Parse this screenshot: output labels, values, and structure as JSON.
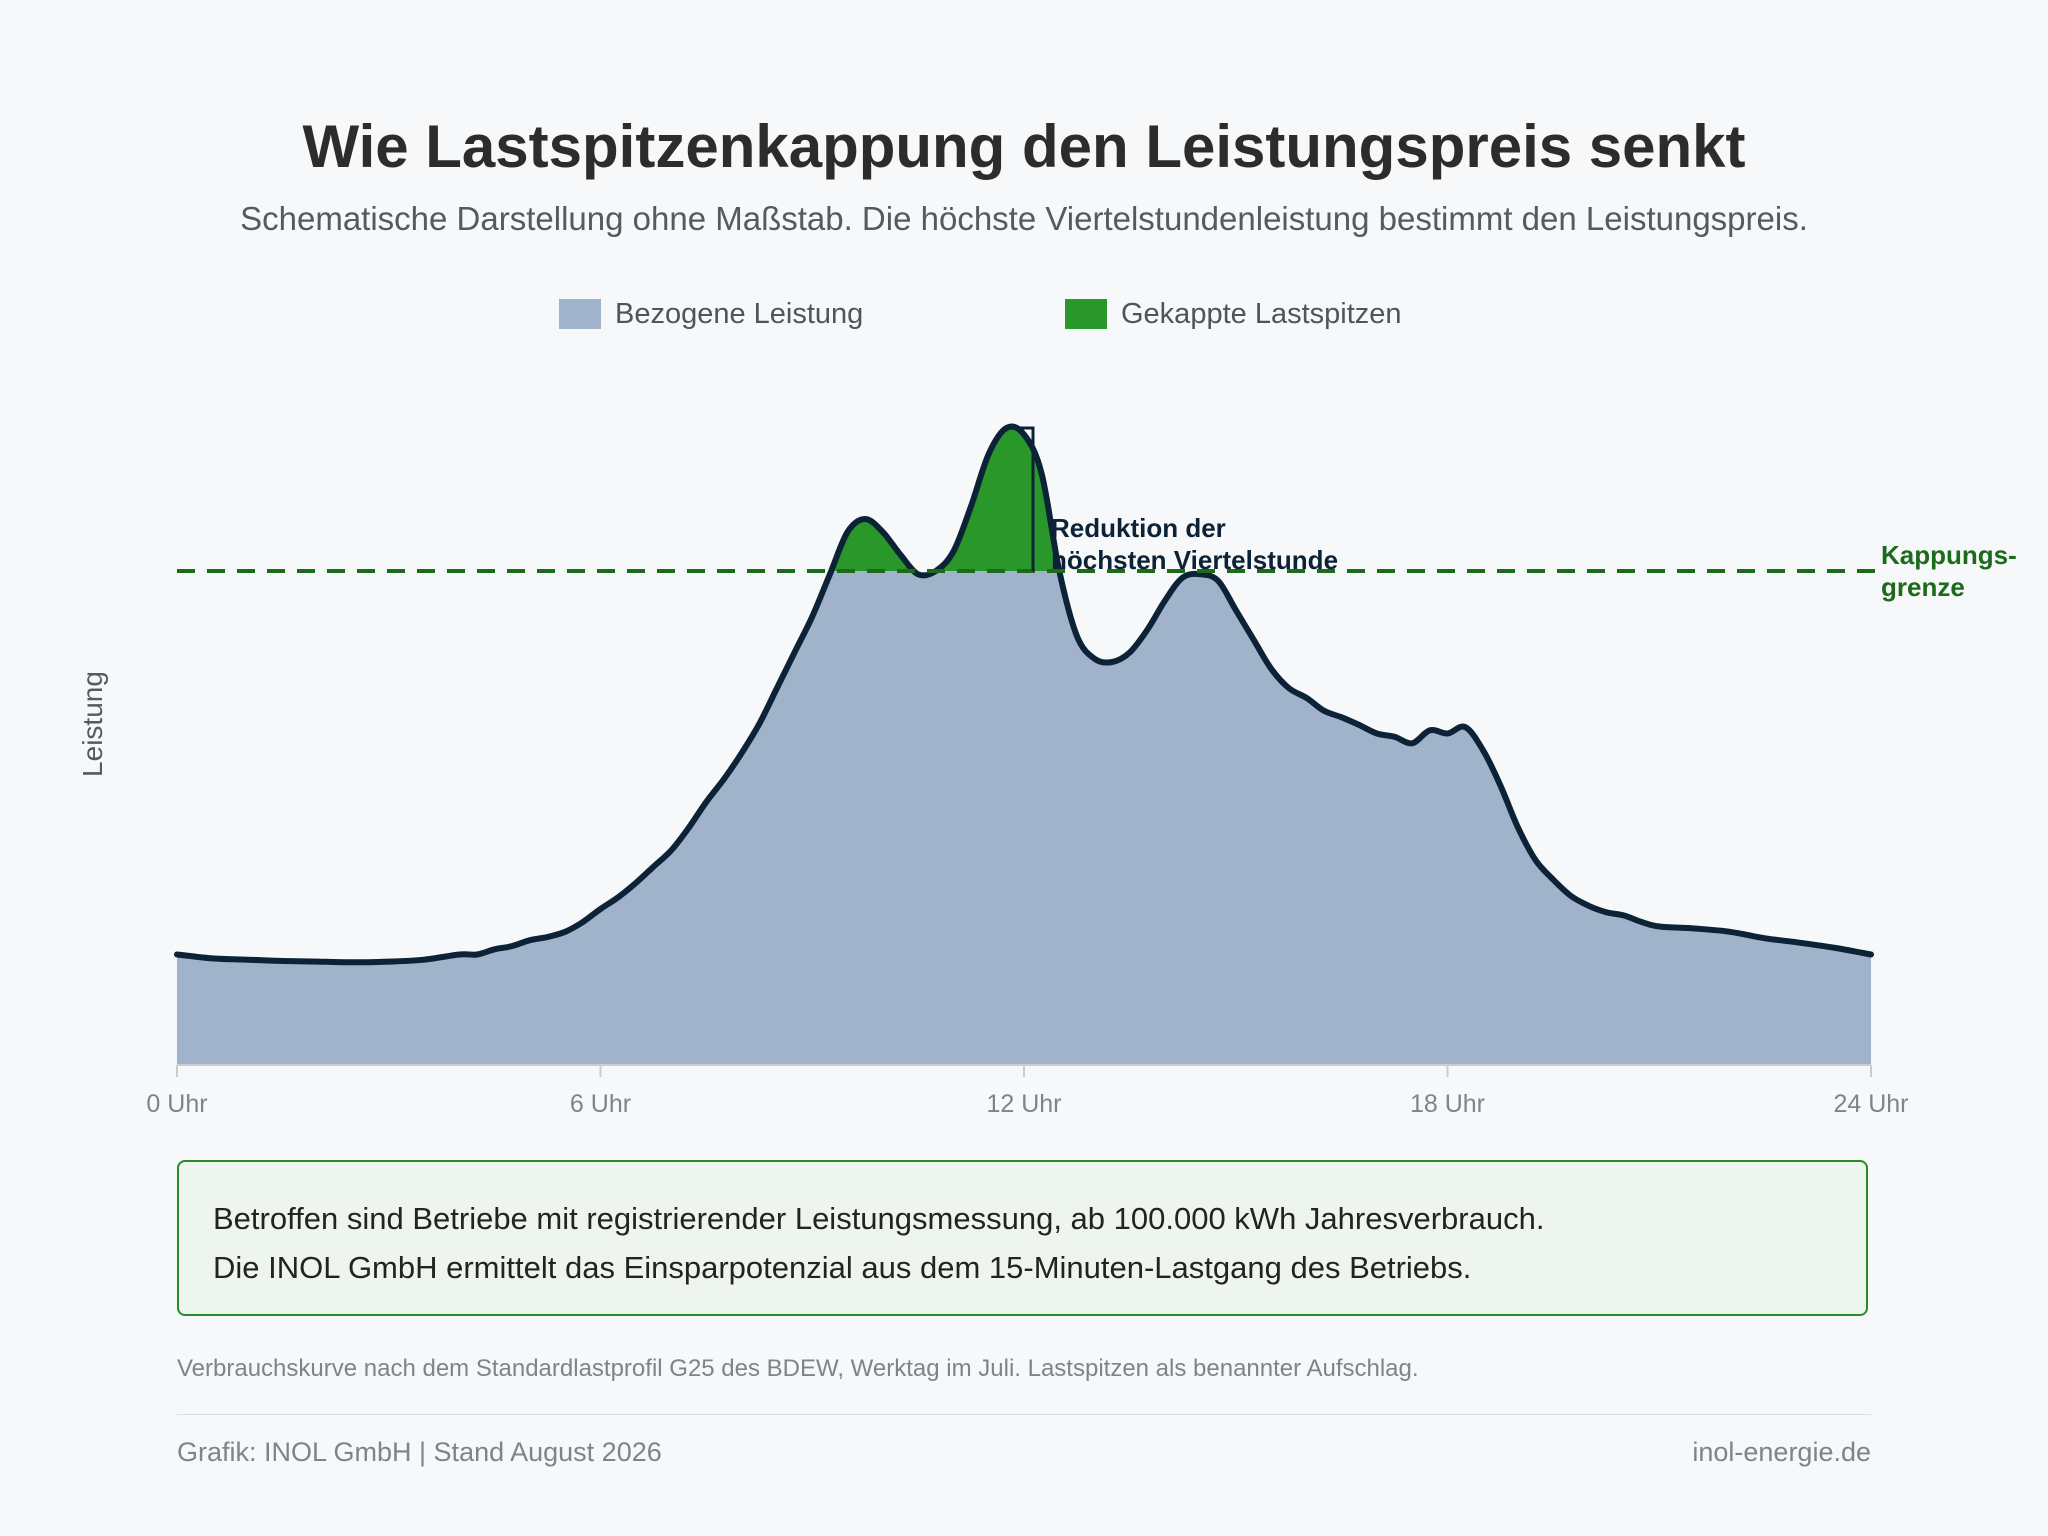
{
  "title": "Wie Lastspitzenkappung den Leistungspreis senkt",
  "subtitle": "Schematische Darstellung ohne Maßstab. Die höchste Viertelstundenleistung bestimmt den Leistungspreis.",
  "legend": [
    {
      "label": "Bezogene Leistung",
      "color": "#a1b2cb"
    },
    {
      "label": "Gekappte Lastspitzen",
      "color": "#2a972a"
    }
  ],
  "chart_data": {
    "type": "area",
    "ylabel": "Leistung",
    "xlabel": "",
    "x_ticks": [
      {
        "hour": 0,
        "label": "0 Uhr"
      },
      {
        "hour": 6,
        "label": "6 Uhr"
      },
      {
        "hour": 12,
        "label": "12 Uhr"
      },
      {
        "hour": 18,
        "label": "18 Uhr"
      },
      {
        "hour": 24,
        "label": "24 Uhr"
      }
    ],
    "xlim": [
      0,
      24
    ],
    "ylim": [
      0,
      100
    ],
    "grid": false,
    "cap_value": 76,
    "cap_label": [
      "Kappungs-",
      "grenze"
    ],
    "annotation": [
      "Reduktion der",
      "höchsten Viertelstunde"
    ],
    "colors": {
      "area": "#a1b2cb",
      "capped": "#2a972a",
      "line": "#0c2237",
      "cap_line": "#1b6b1b",
      "cap_text": "#1b6b1b",
      "annotation_text": "#0c2237"
    },
    "series": [
      {
        "x": [
          0,
          0.5,
          1,
          1.5,
          2,
          2.5,
          3,
          3.5,
          4,
          4.25,
          4.5,
          4.75,
          5,
          5.25,
          5.5,
          5.75,
          6,
          6.25,
          6.5,
          6.75,
          7,
          7.25,
          7.5,
          7.75,
          8,
          8.25,
          8.5,
          8.75,
          9,
          9.25,
          9.5,
          9.75,
          10,
          10.25,
          10.5,
          10.75,
          11,
          11.25,
          11.5,
          11.75,
          12,
          12.25,
          12.5,
          12.75,
          13,
          13.25,
          13.5,
          13.75,
          14,
          14.25,
          14.5,
          14.75,
          15,
          15.25,
          15.5,
          15.75,
          16,
          16.25,
          16.5,
          16.75,
          17,
          17.25,
          17.5,
          17.75,
          18,
          18.25,
          18.5,
          18.75,
          19,
          19.25,
          19.5,
          19.75,
          20,
          20.25,
          20.5,
          20.75,
          21,
          21.5,
          22,
          22.5,
          23,
          23.5,
          24
        ],
        "values": [
          17,
          16.4,
          16.2,
          16,
          15.9,
          15.8,
          15.9,
          16.2,
          17,
          17,
          17.8,
          18.3,
          19.2,
          19.7,
          20.5,
          22,
          24,
          25.8,
          28,
          30.5,
          33,
          36.5,
          40.5,
          44,
          48,
          52.5,
          58,
          63.5,
          69,
          75.5,
          82,
          84,
          82,
          78.5,
          75.5,
          76,
          79,
          86,
          94,
          98,
          97,
          91,
          76,
          66,
          62.5,
          62,
          63.5,
          67,
          71.5,
          75,
          75.5,
          74.5,
          70,
          65.5,
          61,
          58,
          56.5,
          54.5,
          53.5,
          52.3,
          51,
          50.5,
          49.5,
          51.5,
          51,
          52,
          48.5,
          43,
          36.5,
          31.5,
          28.5,
          26,
          24.5,
          23.5,
          23,
          22,
          21.3,
          21,
          20.5,
          19.5,
          18.8,
          18,
          17
        ]
      }
    ]
  },
  "infobox": {
    "line1": "Betroffen sind Betriebe mit registrierender Leistungsmessung, ab 100.000 kWh Jahresverbrauch.",
    "line2": "Die INOL GmbH ermittelt das Einsparpotenzial aus dem 15-Minuten-Lastgang des Betriebs."
  },
  "note": "Verbrauchskurve nach dem Standardlastprofil G25 des BDEW, Werktag im Juli. Lastspitzen als benannter Aufschlag.",
  "footer": {
    "credit": "Grafik: INOL GmbH | Stand August 2026",
    "site": "inol-energie.de"
  }
}
